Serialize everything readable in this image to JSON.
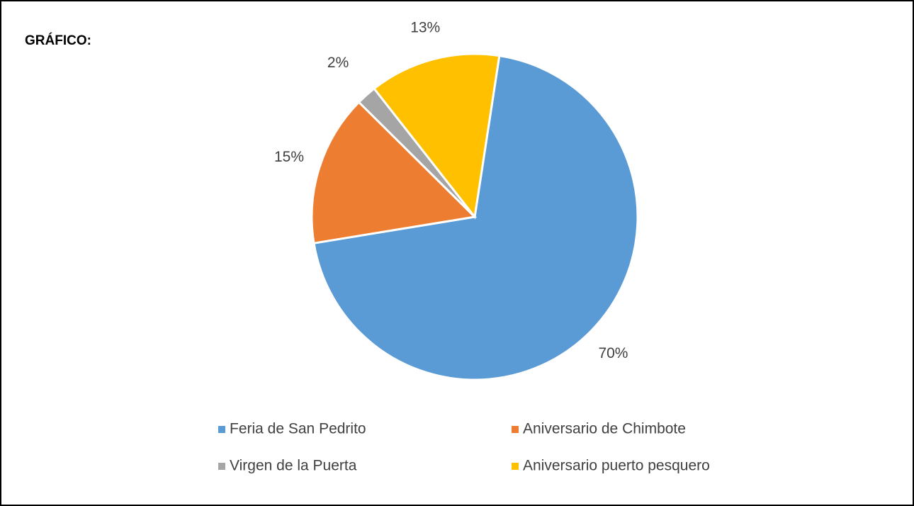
{
  "chart_data": {
    "type": "pie",
    "title": "GRÁFICO:",
    "categories": [
      "Feria de San Pedrito",
      "Aniversario de Chimbote",
      "Virgen de la Puerta",
      "Aniversario puerto pesquero"
    ],
    "values": [
      70,
      15,
      2,
      13
    ],
    "value_labels": [
      "70%",
      "15%",
      "2%",
      "13%"
    ],
    "colors": [
      "#5b9bd5",
      "#ed7d31",
      "#a5a5a5",
      "#ffc000"
    ],
    "legend": "bottom"
  }
}
